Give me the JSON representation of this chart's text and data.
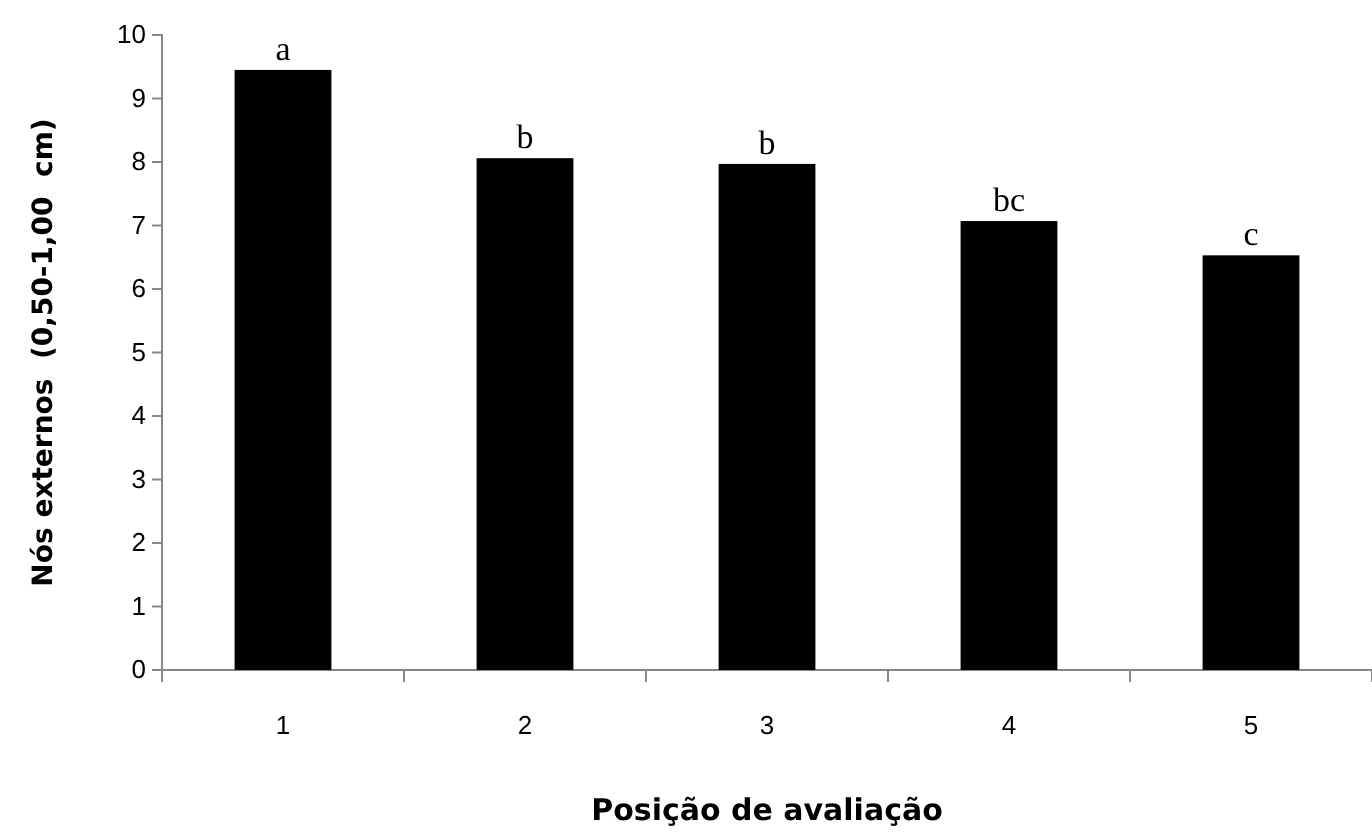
{
  "chart_data": {
    "type": "bar",
    "xlabel": "Posição de avaliação",
    "ylabel": "Nós externos  (0,50-1,00  cm)",
    "categories": [
      "1",
      "2",
      "3",
      "4",
      "5"
    ],
    "values": [
      9.45,
      8.06,
      7.97,
      7.07,
      6.53
    ],
    "color": "#000000",
    "ylim": [
      0,
      10
    ],
    "yticks": [
      0,
      1,
      2,
      3,
      4,
      5,
      6,
      7,
      8,
      9,
      10
    ],
    "grid": false,
    "annotations": [
      {
        "text": "a",
        "x": "1",
        "y": 9.45
      },
      {
        "text": "b",
        "x": "2",
        "y": 8.06
      },
      {
        "text": "b",
        "x": "3",
        "y": 7.97
      },
      {
        "text": "bc",
        "x": "4",
        "y": 7.07
      },
      {
        "text": "c",
        "x": "5",
        "y": 6.53
      }
    ]
  }
}
